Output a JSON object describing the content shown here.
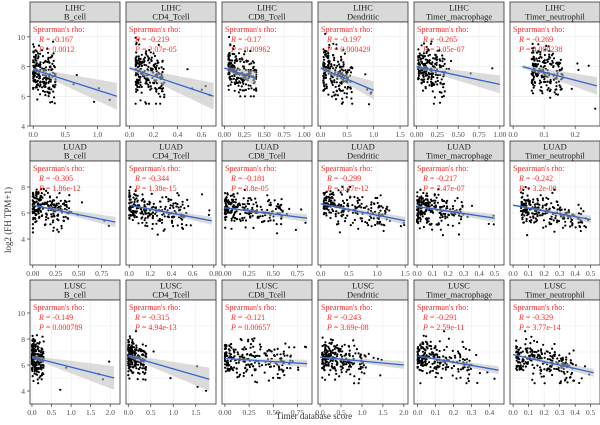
{
  "figure": {
    "ylabel": "log2 (FH TPM+1)",
    "xlabel": "Timer database score"
  },
  "colors": {
    "strip_fill": "#d9d9d9",
    "panel_border": "#333333",
    "grid": "#ebebeb",
    "points": "#000000",
    "fit_line": "#3366cc",
    "ci_band": "#bdbdbd",
    "annotation": "#ff2a2a"
  },
  "chart_data": [
    {
      "type": "scatter",
      "cancer": "LIHC",
      "cell": "B_cell",
      "row": 0,
      "col": 0,
      "rho_label": "Spearman's rho:",
      "R": "-0.167",
      "P": "0.0012",
      "xlim": [
        -0.05,
        1.35
      ],
      "xticks": [
        "0.0",
        "0.5",
        "1.0"
      ],
      "xtickvals": [
        0,
        0.5,
        1.0
      ],
      "ylim": [
        4,
        11
      ],
      "yticks": [
        "4",
        "6",
        "8",
        "10"
      ],
      "ytickvals": [
        4,
        6,
        8,
        10
      ],
      "fit": {
        "x": [
          0,
          1.3
        ],
        "y": [
          7.8,
          6.0
        ]
      },
      "cluster": {
        "x": [
          0.0,
          0.35
        ],
        "y": [
          5.5,
          10.2
        ],
        "n": 200
      },
      "ci": [
        0.1,
        0.9
      ]
    },
    {
      "type": "scatter",
      "cancer": "LIHC",
      "cell": "CD4_Tcell",
      "row": 0,
      "col": 1,
      "rho_label": "Spearman's rho:",
      "R": "-0.219",
      "P": "2.07e-05",
      "xlim": [
        -0.03,
        0.72
      ],
      "xticks": [
        "0.0",
        "0.2",
        "0.4",
        "0.6"
      ],
      "xtickvals": [
        0,
        0.2,
        0.4,
        0.6
      ],
      "ylim": [
        4,
        11
      ],
      "yticks": [],
      "ytickvals": [],
      "fit": {
        "x": [
          0,
          0.7
        ],
        "y": [
          7.9,
          6.0
        ]
      },
      "cluster": {
        "x": [
          0.05,
          0.3
        ],
        "y": [
          5.5,
          10.2
        ],
        "n": 200
      },
      "ci": [
        0.1,
        0.9
      ]
    },
    {
      "type": "scatter",
      "cancer": "LIHC",
      "cell": "CD8_Tcell",
      "row": 0,
      "col": 2,
      "rho_label": "Spearman's rho:",
      "R": "-0.17",
      "P": "0.00962",
      "xlim": [
        -0.03,
        1.1
      ],
      "xticks": [
        "0.00",
        "0.25",
        "0.50",
        "0.75",
        "1.00"
      ],
      "xtickvals": [
        0,
        0.25,
        0.5,
        0.75,
        1.0
      ],
      "ylim": [
        4,
        11
      ],
      "yticks": [],
      "ytickvals": [],
      "fit": {
        "x": [
          0,
          0.4
        ],
        "y": [
          7.9,
          7.2
        ]
      },
      "cluster": {
        "x": [
          0.05,
          0.4
        ],
        "y": [
          6.0,
          10.2
        ],
        "n": 200
      },
      "ci": [
        0.1,
        0.5
      ]
    },
    {
      "type": "scatter",
      "cancer": "LIHC",
      "cell": "Dendritic",
      "row": 0,
      "col": 3,
      "rho_label": "Spearman's rho:",
      "R": "-0.197",
      "P": "0.000429",
      "xlim": [
        -0.05,
        1.65
      ],
      "xticks": [
        "0.0",
        "0.5",
        "1.0",
        "1.5"
      ],
      "xtickvals": [
        0,
        0.5,
        1.0,
        1.5
      ],
      "ylim": [
        4,
        11
      ],
      "yticks": [],
      "ytickvals": [],
      "fit": {
        "x": [
          0,
          1.0
        ],
        "y": [
          7.9,
          6.4
        ]
      },
      "cluster": {
        "x": [
          0.05,
          0.6
        ],
        "y": [
          5.5,
          10.2
        ],
        "n": 200
      },
      "ci": [
        0.1,
        0.6
      ]
    },
    {
      "type": "scatter",
      "cancer": "LIHC",
      "cell": "Timer_macrophage",
      "row": 0,
      "col": 4,
      "rho_label": "Spearman's rho:",
      "R": "-0.265",
      "P": "2.05e-07",
      "xlim": [
        -0.03,
        1.05
      ],
      "xticks": [
        "0.00",
        "0.25",
        "0.50",
        "0.75",
        "1.00"
      ],
      "xtickvals": [
        0,
        0.25,
        0.5,
        0.75,
        1.0
      ],
      "ylim": [
        4,
        11
      ],
      "yticks": [],
      "ytickvals": [],
      "fit": {
        "x": [
          0,
          1.0
        ],
        "y": [
          8.0,
          6.8
        ]
      },
      "cluster": {
        "x": [
          0.02,
          0.35
        ],
        "y": [
          5.5,
          10.2
        ],
        "n": 200
      },
      "ci": [
        0.1,
        0.6
      ]
    },
    {
      "type": "scatter",
      "cancer": "LIHC",
      "cell": "Timer_neutrophil",
      "row": 0,
      "col": 5,
      "rho_label": "Spearman's rho:",
      "R": "-0.269",
      "P": "0.000238",
      "xlim": [
        -0.01,
        0.28
      ],
      "xticks": [
        "0.0",
        "0.1",
        "0.2"
      ],
      "xtickvals": [
        0,
        0.1,
        0.2
      ],
      "ylim": [
        4,
        11
      ],
      "yticks": [],
      "ytickvals": [],
      "fit": {
        "x": [
          0.03,
          0.27
        ],
        "y": [
          8.0,
          6.7
        ]
      },
      "cluster": {
        "x": [
          0.06,
          0.16
        ],
        "y": [
          5.5,
          10.2
        ],
        "n": 200
      },
      "ci": [
        0.1,
        0.6
      ]
    },
    {
      "type": "scatter",
      "cancer": "LUAD",
      "cell": "B_cell",
      "row": 1,
      "col": 0,
      "rho_label": "Spearman's rho:",
      "R": "-0.305",
      "P": "1.86e-12",
      "xlim": [
        -0.03,
        0.95
      ],
      "xticks": [
        "0.00",
        "0.25",
        "0.50",
        "0.75"
      ],
      "xtickvals": [
        0,
        0.25,
        0.5,
        0.75
      ],
      "ylim": [
        2,
        10
      ],
      "yticks": [
        "4",
        "6",
        "8"
      ],
      "ytickvals": [
        4,
        6,
        8
      ],
      "fit": {
        "x": [
          0,
          0.9
        ],
        "y": [
          6.6,
          5.3
        ]
      },
      "cluster": {
        "x": [
          0.0,
          0.4
        ],
        "y": [
          4.3,
          8.0
        ],
        "n": 220
      },
      "ci": [
        0.05,
        0.4
      ]
    },
    {
      "type": "scatter",
      "cancer": "LUAD",
      "cell": "CD4_Tcell",
      "row": 1,
      "col": 1,
      "rho_label": "Spearman's rho:",
      "R": "-0.344",
      "P": "1.38e-15",
      "xlim": [
        -0.03,
        0.82
      ],
      "xticks": [
        "0.0",
        "0.2",
        "0.4",
        "0.6",
        "0.8"
      ],
      "xtickvals": [
        0,
        0.2,
        0.4,
        0.6,
        0.8
      ],
      "ylim": [
        2,
        10
      ],
      "yticks": [],
      "ytickvals": [],
      "fit": {
        "x": [
          0,
          0.78
        ],
        "y": [
          6.6,
          5.4
        ]
      },
      "cluster": {
        "x": [
          0.0,
          0.55
        ],
        "y": [
          4.3,
          8.0
        ],
        "n": 220
      },
      "ci": [
        0.05,
        0.3
      ]
    },
    {
      "type": "scatter",
      "cancer": "LUAD",
      "cell": "CD8_Tcell",
      "row": 1,
      "col": 2,
      "rho_label": "Spearman's rho:",
      "R": "-0.181",
      "P": "3.8e-05",
      "xlim": [
        -0.03,
        0.9
      ],
      "xticks": [
        "0.00",
        "0.25",
        "0.50",
        "0.75"
      ],
      "xtickvals": [
        0,
        0.25,
        0.5,
        0.75
      ],
      "ylim": [
        2,
        10
      ],
      "yticks": [],
      "ytickvals": [],
      "fit": {
        "x": [
          0,
          0.85
        ],
        "y": [
          6.4,
          5.6
        ]
      },
      "cluster": {
        "x": [
          0.0,
          0.6
        ],
        "y": [
          4.3,
          8.0
        ],
        "n": 220
      },
      "ci": [
        0.05,
        0.3
      ]
    },
    {
      "type": "scatter",
      "cancer": "LUAD",
      "cell": "Dendritic",
      "row": 1,
      "col": 3,
      "rho_label": "Spearman's rho:",
      "R": "-0.299",
      "P": "5.47e-12",
      "xlim": [
        -0.05,
        1.55
      ],
      "xticks": [
        "0.0",
        "0.5",
        "1.0",
        "1.5"
      ],
      "xtickvals": [
        0,
        0.5,
        1.0,
        1.5
      ],
      "ylim": [
        2,
        10
      ],
      "yticks": [],
      "ytickvals": [],
      "fit": {
        "x": [
          0,
          1.5
        ],
        "y": [
          6.7,
          5.4
        ]
      },
      "cluster": {
        "x": [
          0.05,
          1.2
        ],
        "y": [
          4.3,
          8.0
        ],
        "n": 220
      },
      "ci": [
        0.05,
        0.3
      ]
    },
    {
      "type": "scatter",
      "cancer": "LUAD",
      "cell": "Timer_macrophage",
      "row": 1,
      "col": 4,
      "rho_label": "Spearman's rho:",
      "R": "-0.217",
      "P": "7.47e-07",
      "xlim": [
        -0.02,
        0.56
      ],
      "xticks": [
        "0.0",
        "0.1",
        "0.2",
        "0.3",
        "0.4",
        "0.5"
      ],
      "xtickvals": [
        0,
        0.1,
        0.2,
        0.3,
        0.4,
        0.5
      ],
      "ylim": [
        2,
        10
      ],
      "yticks": [],
      "ytickvals": [],
      "fit": {
        "x": [
          0,
          0.5
        ],
        "y": [
          6.5,
          5.6
        ]
      },
      "cluster": {
        "x": [
          0.0,
          0.3
        ],
        "y": [
          4.3,
          8.0
        ],
        "n": 220
      },
      "ci": [
        0.05,
        0.3
      ]
    },
    {
      "type": "scatter",
      "cancer": "LUAD",
      "cell": "Timer_neutrophil",
      "row": 1,
      "col": 5,
      "rho_label": "Spearman's rho:",
      "R": "-0.242",
      "P": "3.2e-08",
      "xlim": [
        -0.02,
        0.56
      ],
      "xticks": [
        "0.0",
        "0.1",
        "0.2",
        "0.3",
        "0.4",
        "0.5"
      ],
      "xtickvals": [
        0,
        0.1,
        0.2,
        0.3,
        0.4,
        0.5
      ],
      "ylim": [
        2,
        10
      ],
      "yticks": [],
      "ytickvals": [],
      "fit": {
        "x": [
          0,
          0.5
        ],
        "y": [
          6.6,
          5.5
        ]
      },
      "cluster": {
        "x": [
          0.05,
          0.45
        ],
        "y": [
          4.3,
          8.0
        ],
        "n": 220
      },
      "ci": [
        0.05,
        0.3
      ]
    },
    {
      "type": "scatter",
      "cancer": "LUSC",
      "cell": "B_cell",
      "row": 2,
      "col": 0,
      "rho_label": "Spearman's rho:",
      "R": "-0.149",
      "P": "0.000789",
      "xlim": [
        -0.05,
        2.25
      ],
      "xticks": [
        "0.0",
        "0.5",
        "1.0",
        "1.5",
        "2.0"
      ],
      "xtickvals": [
        0,
        0.5,
        1.0,
        1.5,
        2.0
      ],
      "ylim": [
        3,
        11
      ],
      "yticks": [
        "4",
        "6",
        "8",
        "10"
      ],
      "ytickvals": [
        4,
        6,
        8,
        10
      ],
      "fit": {
        "x": [
          0,
          2.1
        ],
        "y": [
          6.6,
          5.0
        ]
      },
      "cluster": {
        "x": [
          0.0,
          0.3
        ],
        "y": [
          4.6,
          8.6
        ],
        "n": 200
      },
      "ci": [
        0.1,
        0.9
      ]
    },
    {
      "type": "scatter",
      "cancer": "LUSC",
      "cell": "CD4_Tcell",
      "row": 2,
      "col": 1,
      "rho_label": "Spearman's rho:",
      "R": "-0.315",
      "P": "4.94e-13",
      "xlim": [
        -0.05,
        1.95
      ],
      "xticks": [
        "0.0",
        "0.5",
        "1.0",
        "1.5"
      ],
      "xtickvals": [
        0,
        0.5,
        1.0,
        1.5
      ],
      "ylim": [
        3,
        11
      ],
      "yticks": [],
      "ytickvals": [],
      "fit": {
        "x": [
          0,
          1.8
        ],
        "y": [
          6.7,
          4.9
        ]
      },
      "cluster": {
        "x": [
          0.0,
          0.4
        ],
        "y": [
          4.6,
          8.6
        ],
        "n": 200
      },
      "ci": [
        0.1,
        0.9
      ]
    },
    {
      "type": "scatter",
      "cancer": "LUSC",
      "cell": "CD8_Tcell",
      "row": 2,
      "col": 2,
      "rho_label": "Spearman's rho:",
      "R": "-0.121",
      "P": "0.00657",
      "xlim": [
        -0.03,
        0.9
      ],
      "xticks": [
        "0.00",
        "0.25",
        "0.50",
        "0.75"
      ],
      "xtickvals": [
        0,
        0.25,
        0.5,
        0.75
      ],
      "ylim": [
        3,
        11
      ],
      "yticks": [],
      "ytickvals": [],
      "fit": {
        "x": [
          0,
          0.85
        ],
        "y": [
          6.5,
          6.1
        ]
      },
      "cluster": {
        "x": [
          0.0,
          0.7
        ],
        "y": [
          4.6,
          8.6
        ],
        "n": 220
      },
      "ci": [
        0.05,
        0.3
      ]
    },
    {
      "type": "scatter",
      "cancer": "LUSC",
      "cell": "Dendritic",
      "row": 2,
      "col": 3,
      "rho_label": "Spearman's rho:",
      "R": "-0.243",
      "P": "3.69e-08",
      "xlim": [
        -0.05,
        2.1
      ],
      "xticks": [
        "0.0",
        "0.5",
        "1.0",
        "1.5",
        "2.0"
      ],
      "xtickvals": [
        0,
        0.5,
        1.0,
        1.5,
        2.0
      ],
      "ylim": [
        3,
        11
      ],
      "yticks": [],
      "ytickvals": [],
      "fit": {
        "x": [
          0,
          2.0
        ],
        "y": [
          6.6,
          6.0
        ]
      },
      "cluster": {
        "x": [
          0.05,
          1.1
        ],
        "y": [
          4.6,
          8.6
        ],
        "n": 220
      },
      "ci": [
        0.05,
        0.3
      ]
    },
    {
      "type": "scatter",
      "cancer": "LUSC",
      "cell": "Timer_macrophage",
      "row": 2,
      "col": 4,
      "rho_label": "Spearman's rho:",
      "R": "-0.291",
      "P": "2.59e-11",
      "xlim": [
        -0.02,
        0.48
      ],
      "xticks": [
        "0.0",
        "0.1",
        "0.2",
        "0.3",
        "0.4"
      ],
      "xtickvals": [
        0,
        0.1,
        0.2,
        0.3,
        0.4
      ],
      "ylim": [
        3,
        11
      ],
      "yticks": [],
      "ytickvals": [],
      "fit": {
        "x": [
          0,
          0.45
        ],
        "y": [
          6.7,
          5.6
        ]
      },
      "cluster": {
        "x": [
          0.0,
          0.3
        ],
        "y": [
          4.6,
          8.6
        ],
        "n": 220
      },
      "ci": [
        0.05,
        0.3
      ]
    },
    {
      "type": "scatter",
      "cancer": "LUSC",
      "cell": "Timer_neutrophil",
      "row": 2,
      "col": 5,
      "rho_label": "Spearman's rho:",
      "R": "-0.329",
      "P": "3.77e-14",
      "xlim": [
        -0.02,
        0.56
      ],
      "xticks": [
        "0.0",
        "0.1",
        "0.2",
        "0.3",
        "0.4",
        "0.5"
      ],
      "xtickvals": [
        0,
        0.1,
        0.2,
        0.3,
        0.4,
        0.5
      ],
      "ylim": [
        3,
        11
      ],
      "yticks": [],
      "ytickvals": [],
      "fit": {
        "x": [
          0,
          0.52
        ],
        "y": [
          6.8,
          5.4
        ]
      },
      "cluster": {
        "x": [
          0.02,
          0.4
        ],
        "y": [
          4.6,
          8.6
        ],
        "n": 220
      },
      "ci": [
        0.05,
        0.3
      ]
    }
  ]
}
